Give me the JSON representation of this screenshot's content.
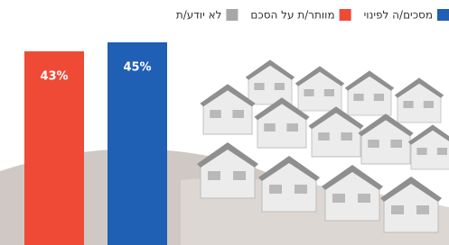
{
  "chart_data": {
    "type": "bar",
    "categories": [
      null
    ],
    "series": [
      {
        "name": "מסכים/ה לפינוי",
        "color": "#1f5fb4",
        "values": [
          45
        ],
        "value_labels": [
          "45%"
        ]
      },
      {
        "name": "מוותר/ת על הסכם",
        "color": "#ee4a36",
        "values": [
          43
        ],
        "value_labels": [
          "43%"
        ]
      },
      {
        "name": "לא יודע/ת",
        "color": "#a7a7a7",
        "values": [
          null
        ]
      }
    ],
    "ylim": [
      0,
      50
    ]
  }
}
